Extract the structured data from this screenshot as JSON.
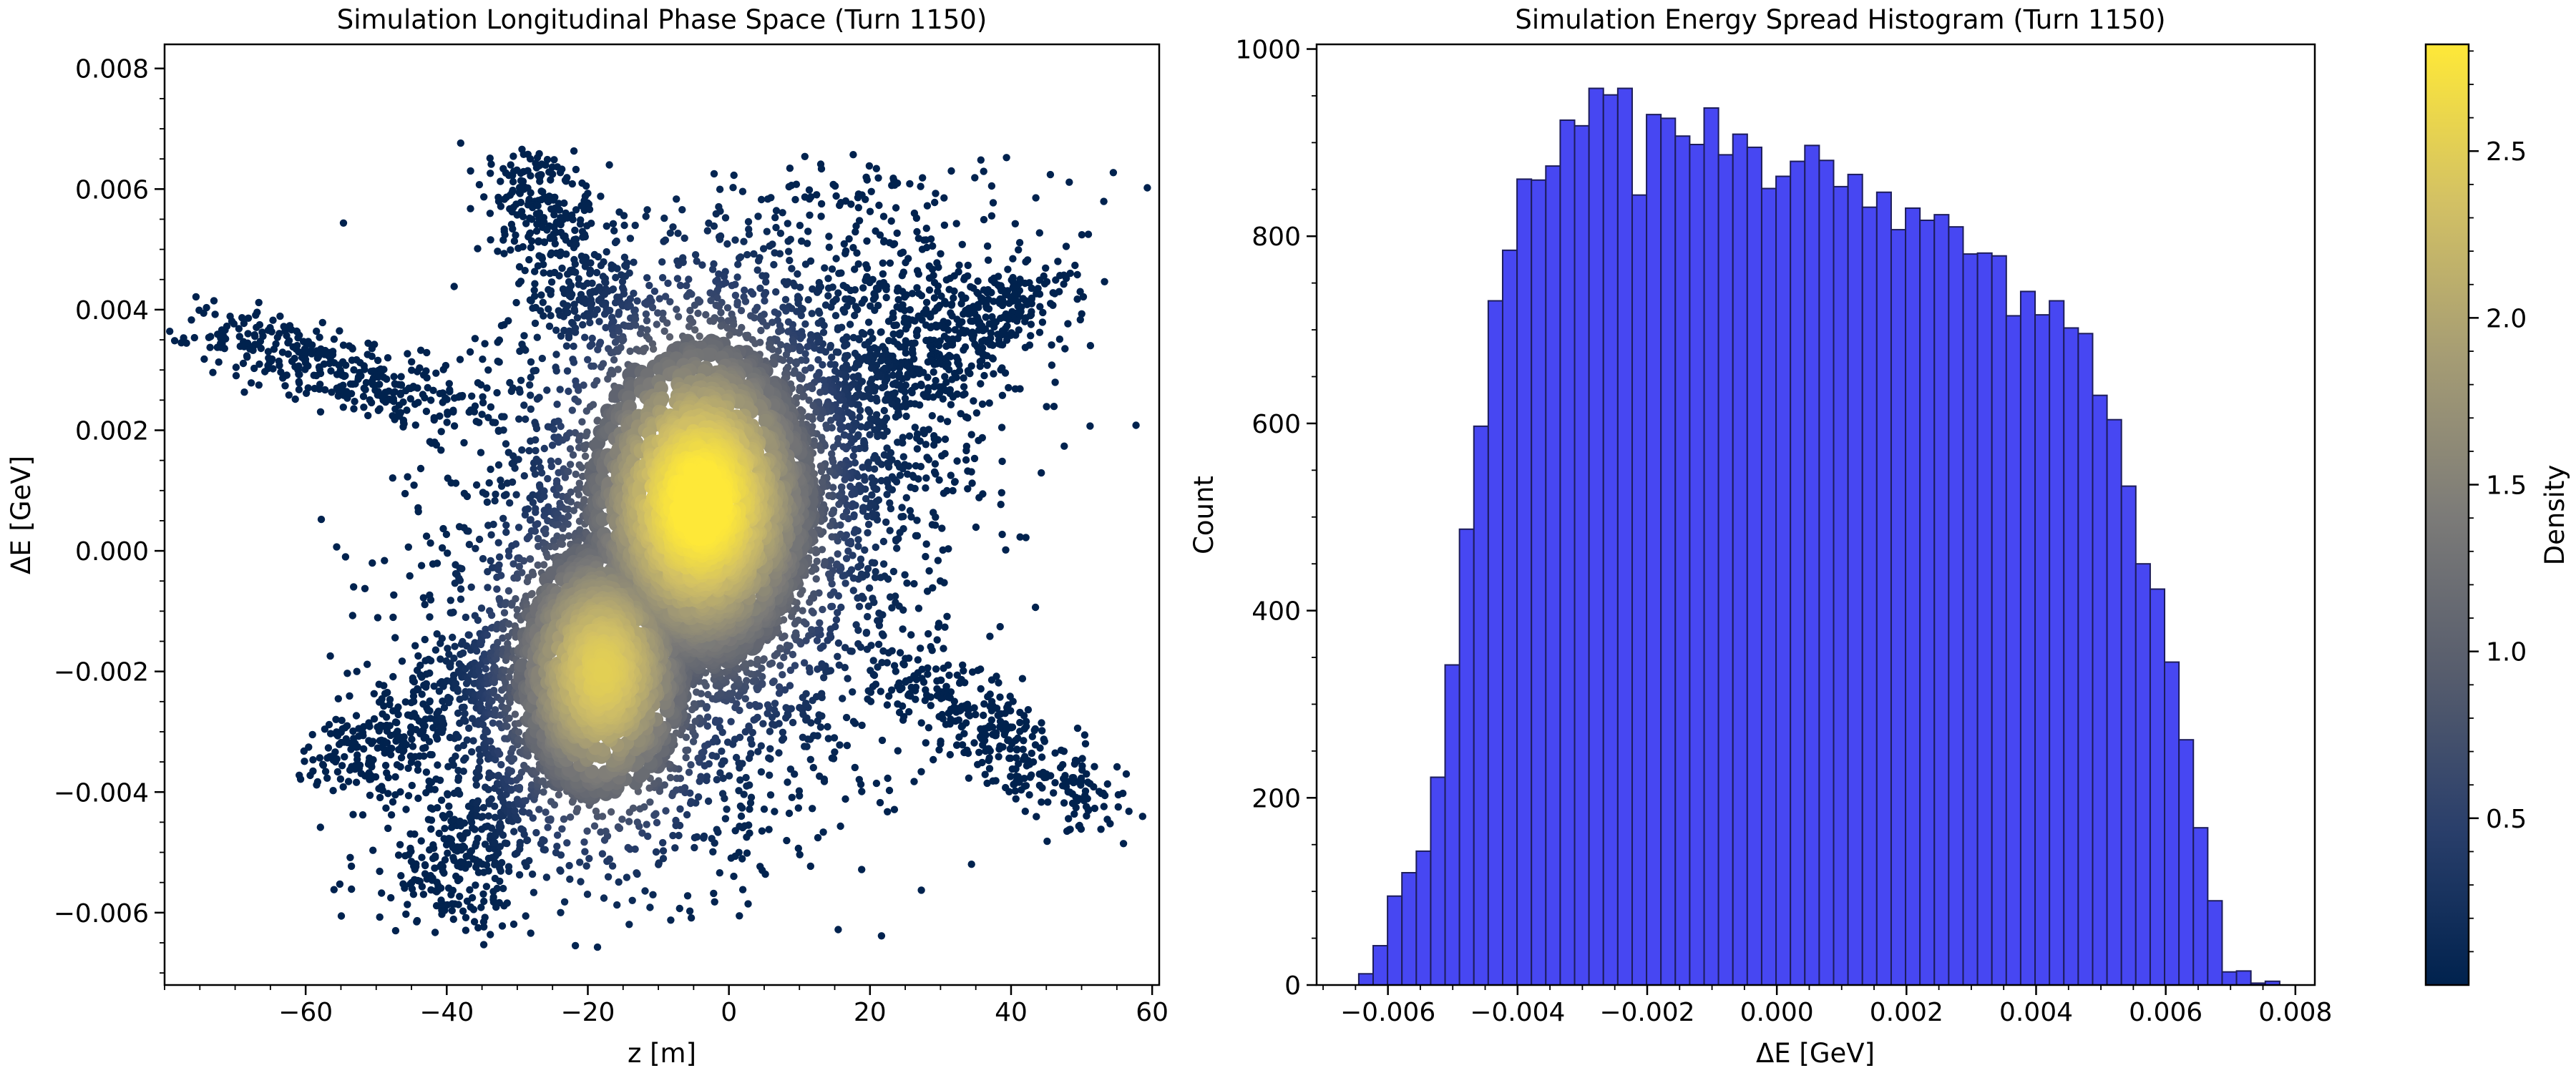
{
  "colors": {
    "bar_fill": "#4747f2",
    "bar_edge": "#1d1d5a",
    "cmap": [
      "#00224e",
      "#2a3f6b",
      "#575d6d",
      "#7c7b78",
      "#a59c74",
      "#d3c164",
      "#fee838"
    ]
  },
  "chart_data": [
    {
      "type": "scatter",
      "title": "Simulation Longitudinal Phase Space (Turn 1150)",
      "xlabel": "z [m]",
      "ylabel": "ΔE [GeV]",
      "xlim": [
        -80,
        61
      ],
      "ylim": [
        -0.0072,
        0.0084
      ],
      "xticks": [
        -60,
        -40,
        -20,
        0,
        20,
        40,
        60
      ],
      "xtick_labels": [
        "−60",
        "−40",
        "−20",
        "0",
        "20",
        "40",
        "60"
      ],
      "yticks": [
        -0.006,
        -0.004,
        -0.002,
        0.0,
        0.002,
        0.004,
        0.006,
        0.008
      ],
      "ytick_labels": [
        "−0.006",
        "−0.004",
        "−0.002",
        "0.000",
        "0.002",
        "0.004",
        "0.006",
        "0.008"
      ],
      "color_by": "Density",
      "distribution": {
        "core": {
          "z": -4,
          "dE": 0.0008
        },
        "tail_down": {
          "z": -18,
          "dE": -0.002
        },
        "arms": [
          {
            "z": -72,
            "dE": 0.0037
          },
          {
            "z": -30,
            "dE": 0.0064
          },
          {
            "z": 45,
            "dE": 0.0045
          },
          {
            "z": 52,
            "dE": -0.0043
          },
          {
            "z": -42,
            "dE": -0.0058
          },
          {
            "z": -55,
            "dE": -0.0037
          }
        ]
      }
    },
    {
      "type": "bar",
      "title": "Simulation Energy Spread Histogram (Turn 1150)",
      "xlabel": "ΔE [GeV]",
      "ylabel": "Count",
      "xlim": [
        -0.0071,
        0.0083
      ],
      "ylim": [
        0,
        1005
      ],
      "xticks": [
        -0.006,
        -0.004,
        -0.002,
        0.0,
        0.002,
        0.004,
        0.006,
        0.008
      ],
      "xtick_labels": [
        "−0.006",
        "−0.004",
        "−0.002",
        "0.000",
        "0.002",
        "0.004",
        "0.006",
        "0.008"
      ],
      "yticks": [
        0,
        200,
        400,
        600,
        800,
        1000
      ],
      "ytick_labels": [
        "0",
        "200",
        "400",
        "600",
        "800",
        "1000"
      ],
      "bin_start": -0.00645,
      "bin_width": 0.000222,
      "values": [
        12,
        42,
        95,
        120,
        143,
        222,
        342,
        487,
        597,
        731,
        785,
        861,
        860,
        875,
        924,
        918,
        958,
        951,
        958,
        844,
        930,
        926,
        907,
        898,
        937,
        887,
        909,
        895,
        851,
        864,
        880,
        897,
        881,
        853,
        866,
        831,
        847,
        807,
        830,
        817,
        823,
        810,
        781,
        782,
        779,
        715,
        741,
        716,
        731,
        702,
        696,
        630,
        604,
        533,
        450,
        423,
        345,
        262,
        168,
        90,
        14,
        15,
        2,
        4
      ]
    },
    {
      "type": "colorbar",
      "label": "Density",
      "range": [
        0.0,
        2.82
      ],
      "ticks": [
        0.5,
        1.0,
        1.5,
        2.0,
        2.5
      ],
      "tick_labels": [
        "0.5",
        "1.0",
        "1.5",
        "2.0",
        "2.5"
      ]
    }
  ]
}
